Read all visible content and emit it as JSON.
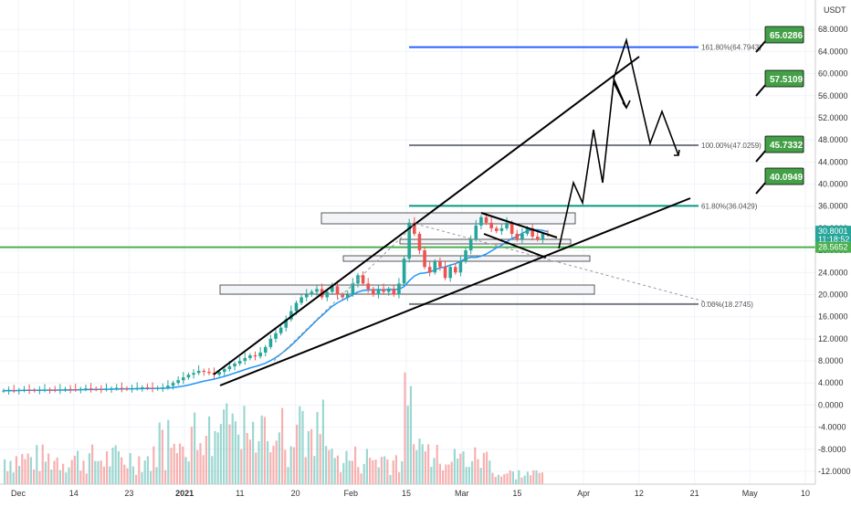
{
  "chart_data": {
    "type": "candlestick",
    "title": "",
    "currency": "USDT",
    "x_ticks": [
      "Dec",
      "14",
      "23",
      "2021",
      "11",
      "20",
      "Feb",
      "15",
      "Mar",
      "15",
      "Apr",
      "12",
      "21",
      "May",
      "10"
    ],
    "y_ticks": [
      "68.0000",
      "64.0000",
      "60.0000",
      "56.0000",
      "52.0000",
      "48.0000",
      "44.0000",
      "40.0000",
      "36.0000",
      "32.0000",
      "28.0000",
      "24.0000",
      "20.0000",
      "16.0000",
      "12.0000",
      "8.0000",
      "4.0000",
      "0.0000",
      "-4.0000",
      "-8.0000",
      "-12.0000"
    ],
    "ylim": [
      -13,
      72
    ],
    "last_price": "30.8001",
    "countdown": "11:18:52",
    "support_price": "28.5652",
    "fib_levels": [
      {
        "label": "161.80%(64.7943)",
        "value": 64.7943,
        "color": "#2962ff"
      },
      {
        "label": "100.00%(47.0259)",
        "value": 47.0259,
        "color": "#787b86"
      },
      {
        "label": "61.80%(36.0429)",
        "value": 36.0429,
        "color": "#089981"
      },
      {
        "label": "0.00%(18.2745)",
        "value": 18.2745,
        "color": "#787b86"
      }
    ],
    "targets": [
      "65.0286",
      "57.5109",
      "45.7332",
      "40.0949"
    ],
    "colors": {
      "up": "#26a69a",
      "down": "#ef5350",
      "ma": "#2196f3",
      "support": "#4caf50",
      "target_bg": "#43a047"
    },
    "price_series": [
      2.6,
      2.65,
      2.6,
      2.7,
      2.75,
      2.7,
      2.65,
      2.7,
      2.8,
      2.75,
      2.7,
      2.8,
      2.9,
      2.85,
      2.8,
      2.9,
      3.0,
      2.95,
      2.9,
      2.85,
      2.9,
      3.0,
      3.1,
      3.0,
      2.95,
      3.0,
      3.1,
      3.2,
      3.1,
      3.0,
      3.1,
      3.2,
      3.5,
      4.0,
      4.5,
      5.0,
      5.5,
      5.8,
      6.2,
      6.0,
      5.8,
      5.5,
      6.0,
      6.5,
      7.0,
      7.5,
      8.0,
      8.5,
      9.0,
      8.8,
      9.5,
      10.5,
      12.0,
      13.0,
      14.0,
      15.5,
      17.0,
      18.5,
      19.5,
      20.0,
      20.5,
      21.0,
      19.5,
      20.5,
      21.5,
      20.0,
      19.5,
      20.0,
      22.0,
      23.5,
      22.0,
      21.0,
      20.0,
      21.0,
      20.5,
      21.0,
      20.0,
      22.0,
      26.5,
      33.0,
      31.0,
      28.0,
      25.0,
      24.0,
      26.0,
      25.0,
      23.0,
      25.0,
      24.0,
      26.0,
      28.0,
      30.0,
      32.5,
      34.0,
      33.0,
      32.0,
      31.5,
      32.0,
      33.0,
      31.0,
      30.0,
      31.0,
      32.0,
      30.5,
      30.0,
      31.0,
      30.8
    ]
  }
}
